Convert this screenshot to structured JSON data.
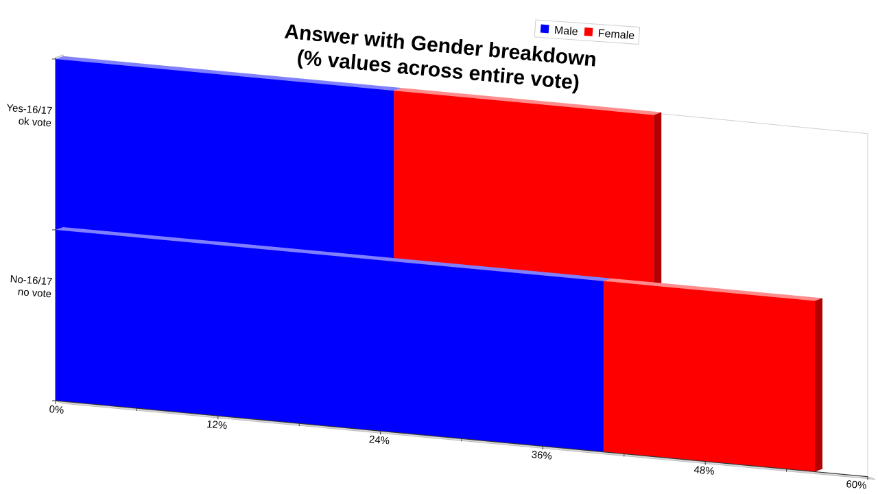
{
  "chart_data": {
    "type": "bar",
    "orientation": "horizontal",
    "stacked": true,
    "title_lines": [
      "Answer with Gender breakdown",
      "(% values across entire vote)"
    ],
    "categories": [
      {
        "lines": [
          "Yes-16/17",
          "ok vote"
        ]
      },
      {
        "lines": [
          "No-16/17",
          "no vote"
        ]
      }
    ],
    "series": [
      {
        "name": "Male",
        "color": "#0000ff",
        "side_color": "#00007a",
        "top_color": "#8080ff",
        "values": [
          25,
          40.5
        ]
      },
      {
        "name": "Female",
        "color": "#ff0000",
        "side_color": "#b30000",
        "top_color": "#ff8c8c",
        "values": [
          19.2,
          15.6
        ]
      }
    ],
    "xlim": [
      0,
      60
    ],
    "x_ticks": [
      "0%",
      "12%",
      "24%",
      "36%",
      "48%",
      "60%"
    ],
    "legend": {
      "position": "top-right"
    }
  }
}
